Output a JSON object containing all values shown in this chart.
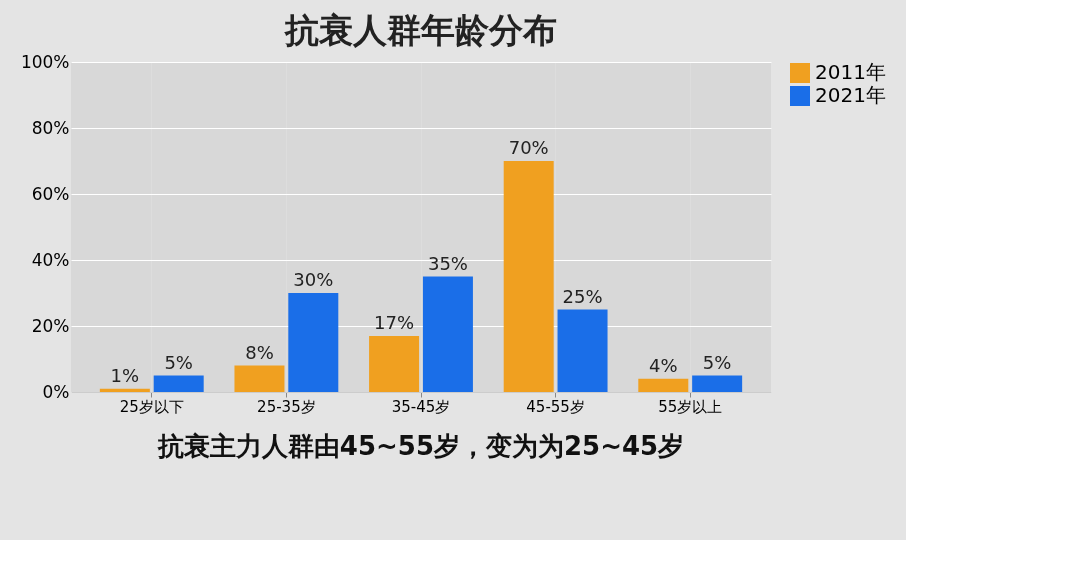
{
  "chart_data": {
    "type": "bar",
    "title": "抗衰人群年龄分布",
    "categories": [
      "25岁以下",
      "25-35岁",
      "35-45岁",
      "45-55岁",
      "55岁以上"
    ],
    "series": [
      {
        "name": "2011年",
        "color": "#f0a020",
        "values": [
          1,
          8,
          17,
          70,
          4
        ],
        "value_labels": [
          "1%",
          "8%",
          "17%",
          "70%",
          "4%"
        ]
      },
      {
        "name": "2021年",
        "color": "#1a6ee8",
        "values": [
          5,
          30,
          35,
          25,
          5
        ],
        "value_labels": [
          "5%",
          "30%",
          "35%",
          "25%",
          "5%"
        ]
      }
    ],
    "ylim": [
      0,
      100
    ],
    "yticks": [
      {
        "value": 0,
        "label": "0%"
      },
      {
        "value": 20,
        "label": "20%"
      },
      {
        "value": 40,
        "label": "40%"
      },
      {
        "value": 60,
        "label": "60%"
      },
      {
        "value": 80,
        "label": "80%"
      },
      {
        "value": 100,
        "label": "100%"
      }
    ],
    "grid": true,
    "legend": "right",
    "annotations": [
      "抗衰主力人群由45~55岁，变为为25~45岁"
    ]
  }
}
